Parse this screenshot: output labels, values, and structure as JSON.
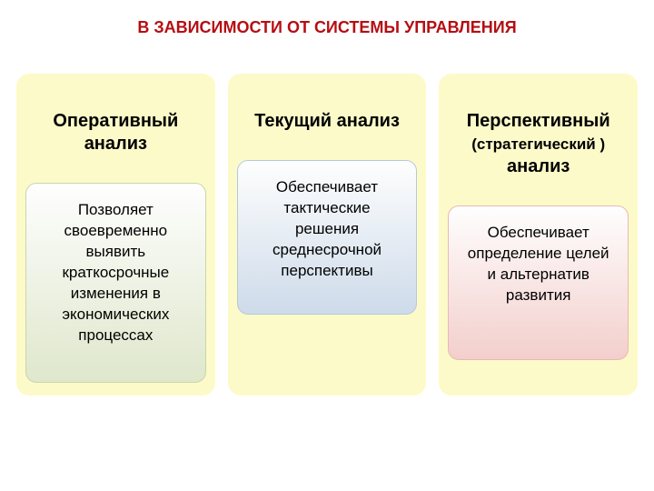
{
  "title": {
    "text": "В ЗАВИСИМОСТИ ОТ СИСТЕМЫ УПРАВЛЕНИЯ",
    "color": "#b50e13",
    "fontsize": 18
  },
  "layout": {
    "column_gap": 14,
    "column_radius": 14,
    "card_radius": 12
  },
  "columns": [
    {
      "id": "operational",
      "bg_color": "#fdfac9",
      "heading": "Оперативный анализ",
      "heading_color": "#000000",
      "card": {
        "text": "Позволяет своевременно выявить краткосрочные изменения в экономических процессах",
        "gradient_top": "#fefefe",
        "gradient_bottom": "#dfe7cc",
        "border_color": "#c9d6ad",
        "text_color": "#000000",
        "min_height": 220
      }
    },
    {
      "id": "current",
      "bg_color": "#fdfac9",
      "heading": "Текущий анализ",
      "heading_color": "#000000",
      "card": {
        "text": "Обеспечивает тактические решения среднесрочной перспективы",
        "gradient_top": "#fefefe",
        "gradient_bottom": "#cedbea",
        "border_color": "#b6c8dd",
        "text_color": "#000000",
        "min_height": 170
      }
    },
    {
      "id": "perspective",
      "bg_color": "#fdfac9",
      "heading_line1": "Перспективный",
      "heading_line2": "(стратегический )",
      "heading_line3": "анализ",
      "heading_color": "#000000",
      "card": {
        "text": "Обеспечивает определение целей и альтернатив развития",
        "gradient_top": "#fefefe",
        "gradient_bottom": "#f3cfcc",
        "border_color": "#e8b9b4",
        "text_color": "#000000",
        "min_height": 170
      }
    }
  ]
}
